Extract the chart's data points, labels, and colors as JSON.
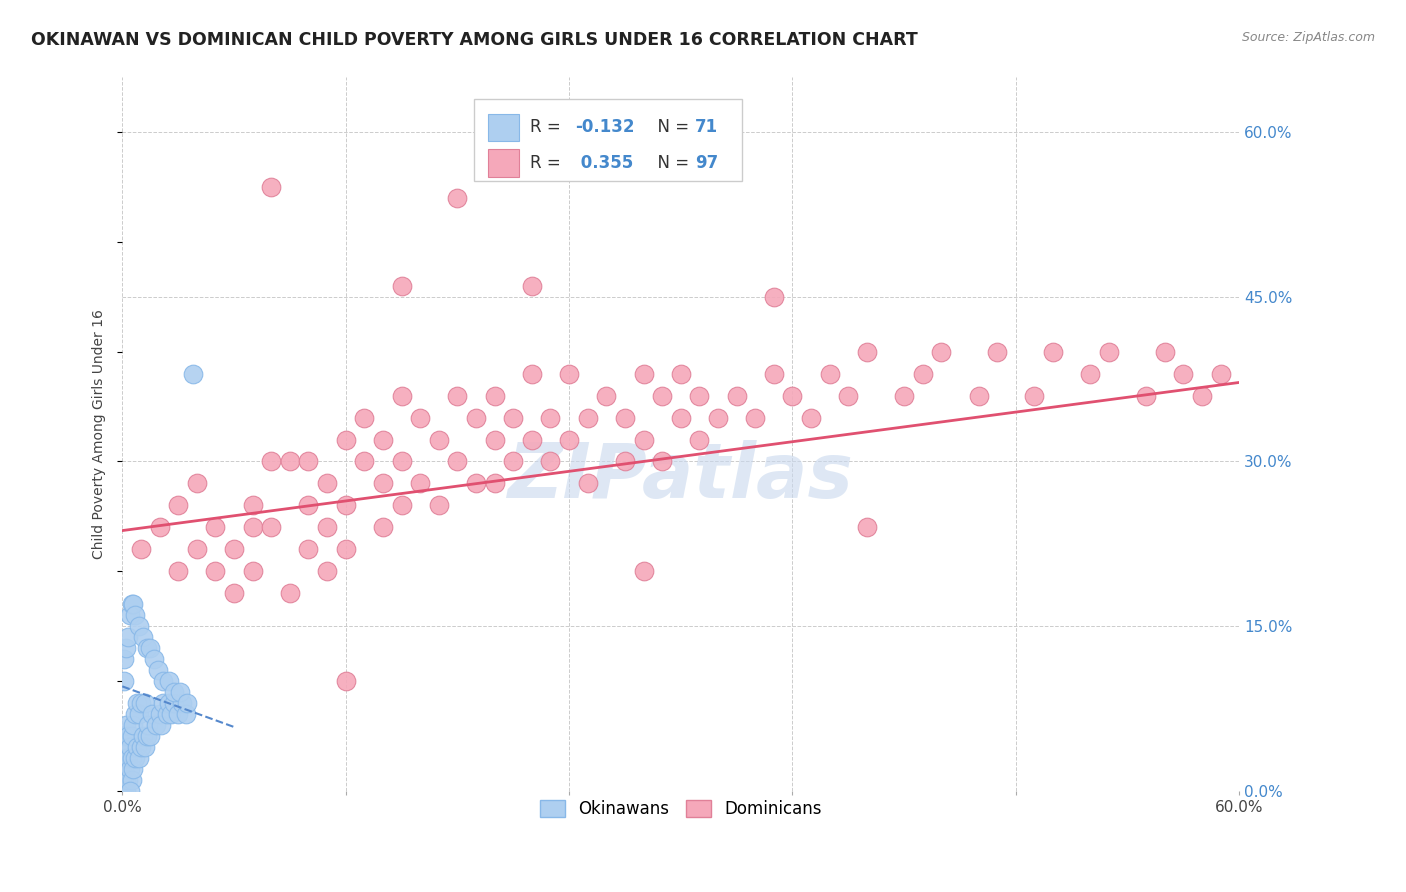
{
  "title": "OKINAWAN VS DOMINICAN CHILD POVERTY AMONG GIRLS UNDER 16 CORRELATION CHART",
  "source": "Source: ZipAtlas.com",
  "ylabel": "Child Poverty Among Girls Under 16",
  "xlim": [
    0.0,
    0.6
  ],
  "ylim": [
    0.0,
    0.65
  ],
  "yticks": [
    0.0,
    0.15,
    0.3,
    0.45,
    0.6
  ],
  "ytick_labels": [
    "0.0%",
    "15.0%",
    "30.0%",
    "45.0%",
    "60.0%"
  ],
  "xtick_labels": [
    "0.0%",
    "60.0%"
  ],
  "okinawan_color": "#aecff0",
  "dominican_color": "#f5a8ba",
  "okinawan_edge": "#88b8e8",
  "dominican_edge": "#e08098",
  "trend_okinawan_color": "#5588cc",
  "trend_dominican_color": "#e05070",
  "R_okinawan": -0.132,
  "N_okinawan": 71,
  "R_dominican": 0.355,
  "N_dominican": 97,
  "background_color": "#ffffff",
  "grid_color": "#cccccc",
  "title_color": "#222222",
  "axis_label_color": "#444444",
  "tick_label_color_right": "#4488cc",
  "watermark": "ZIPatlas",
  "watermark_color": "#c8d8ee",
  "ok_x": [
    0.0,
    0.0,
    0.0,
    0.0,
    0.0,
    0.0,
    0.001,
    0.001,
    0.001,
    0.001,
    0.002,
    0.002,
    0.002,
    0.002,
    0.003,
    0.003,
    0.003,
    0.004,
    0.004,
    0.005,
    0.005,
    0.005,
    0.006,
    0.006,
    0.007,
    0.007,
    0.008,
    0.008,
    0.009,
    0.009,
    0.01,
    0.01,
    0.011,
    0.012,
    0.012,
    0.013,
    0.014,
    0.015,
    0.016,
    0.018,
    0.02,
    0.021,
    0.022,
    0.024,
    0.025,
    0.026,
    0.028,
    0.03,
    0.032,
    0.034,
    0.001,
    0.001,
    0.002,
    0.003,
    0.004,
    0.005,
    0.006,
    0.007,
    0.009,
    0.011,
    0.013,
    0.015,
    0.017,
    0.019,
    0.022,
    0.025,
    0.028,
    0.031,
    0.035,
    0.038,
    0.004
  ],
  "ok_y": [
    0.0,
    0.0,
    0.01,
    0.02,
    0.03,
    0.04,
    0.0,
    0.01,
    0.02,
    0.05,
    0.0,
    0.01,
    0.03,
    0.06,
    0.01,
    0.03,
    0.05,
    0.02,
    0.04,
    0.01,
    0.03,
    0.05,
    0.02,
    0.06,
    0.03,
    0.07,
    0.04,
    0.08,
    0.03,
    0.07,
    0.04,
    0.08,
    0.05,
    0.04,
    0.08,
    0.05,
    0.06,
    0.05,
    0.07,
    0.06,
    0.07,
    0.06,
    0.08,
    0.07,
    0.08,
    0.07,
    0.08,
    0.07,
    0.08,
    0.07,
    0.1,
    0.12,
    0.13,
    0.14,
    0.16,
    0.17,
    0.17,
    0.16,
    0.15,
    0.14,
    0.13,
    0.13,
    0.12,
    0.11,
    0.1,
    0.1,
    0.09,
    0.09,
    0.08,
    0.38,
    0.0
  ],
  "dom_x": [
    0.01,
    0.02,
    0.03,
    0.03,
    0.04,
    0.04,
    0.05,
    0.05,
    0.06,
    0.06,
    0.07,
    0.07,
    0.07,
    0.08,
    0.08,
    0.09,
    0.09,
    0.1,
    0.1,
    0.1,
    0.11,
    0.11,
    0.11,
    0.12,
    0.12,
    0.12,
    0.13,
    0.13,
    0.14,
    0.14,
    0.14,
    0.15,
    0.15,
    0.15,
    0.16,
    0.16,
    0.17,
    0.17,
    0.18,
    0.18,
    0.19,
    0.19,
    0.2,
    0.2,
    0.2,
    0.21,
    0.21,
    0.22,
    0.22,
    0.23,
    0.23,
    0.24,
    0.24,
    0.25,
    0.25,
    0.26,
    0.27,
    0.27,
    0.28,
    0.28,
    0.29,
    0.29,
    0.3,
    0.3,
    0.31,
    0.31,
    0.32,
    0.33,
    0.34,
    0.35,
    0.36,
    0.37,
    0.38,
    0.39,
    0.4,
    0.42,
    0.43,
    0.44,
    0.46,
    0.47,
    0.49,
    0.5,
    0.52,
    0.53,
    0.55,
    0.56,
    0.57,
    0.58,
    0.59,
    0.4,
    0.22,
    0.15,
    0.18,
    0.35,
    0.08,
    0.12,
    0.28
  ],
  "dom_y": [
    0.22,
    0.24,
    0.2,
    0.26,
    0.22,
    0.28,
    0.2,
    0.24,
    0.22,
    0.18,
    0.26,
    0.24,
    0.2,
    0.3,
    0.24,
    0.18,
    0.3,
    0.22,
    0.26,
    0.3,
    0.24,
    0.28,
    0.2,
    0.32,
    0.26,
    0.22,
    0.3,
    0.34,
    0.28,
    0.24,
    0.32,
    0.26,
    0.3,
    0.36,
    0.28,
    0.34,
    0.26,
    0.32,
    0.3,
    0.36,
    0.28,
    0.34,
    0.32,
    0.28,
    0.36,
    0.3,
    0.34,
    0.32,
    0.38,
    0.3,
    0.34,
    0.32,
    0.38,
    0.34,
    0.28,
    0.36,
    0.34,
    0.3,
    0.32,
    0.38,
    0.36,
    0.3,
    0.34,
    0.38,
    0.32,
    0.36,
    0.34,
    0.36,
    0.34,
    0.38,
    0.36,
    0.34,
    0.38,
    0.36,
    0.4,
    0.36,
    0.38,
    0.4,
    0.36,
    0.4,
    0.36,
    0.4,
    0.38,
    0.4,
    0.36,
    0.4,
    0.38,
    0.36,
    0.38,
    0.24,
    0.46,
    0.46,
    0.54,
    0.45,
    0.55,
    0.1,
    0.2
  ]
}
